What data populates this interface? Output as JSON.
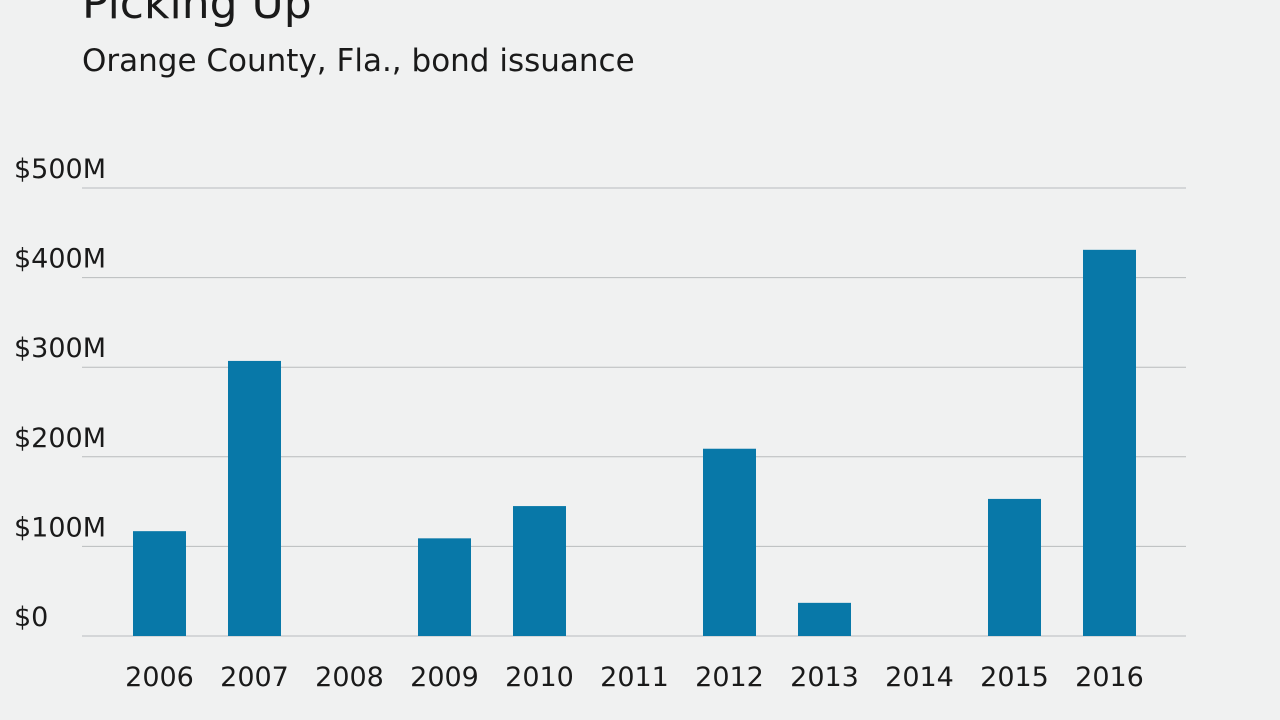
{
  "chart_data": {
    "type": "bar",
    "title": "Picking Up",
    "subtitle": "Orange County, Fla., bond issuance",
    "categories": [
      "2006",
      "2007",
      "2008",
      "2009",
      "2010",
      "2011",
      "2012",
      "2013",
      "2014",
      "2015",
      "2016"
    ],
    "series": [
      {
        "values": [
          117,
          307,
          0,
          109,
          145,
          0,
          209,
          37,
          0,
          153,
          431
        ]
      }
    ],
    "y_unit": "$M",
    "ylim": [
      0,
      500
    ],
    "ytick_values": [
      0,
      100,
      200,
      300,
      400,
      500
    ],
    "ytick_labels": [
      "$0",
      "$100M",
      "$200M",
      "$300M",
      "$400M",
      "$500M"
    ],
    "xlabel": "",
    "ylabel": "",
    "grid": true,
    "legend": "none",
    "bar_color": "#0878a8",
    "grid_color": "#b9bcbe"
  }
}
